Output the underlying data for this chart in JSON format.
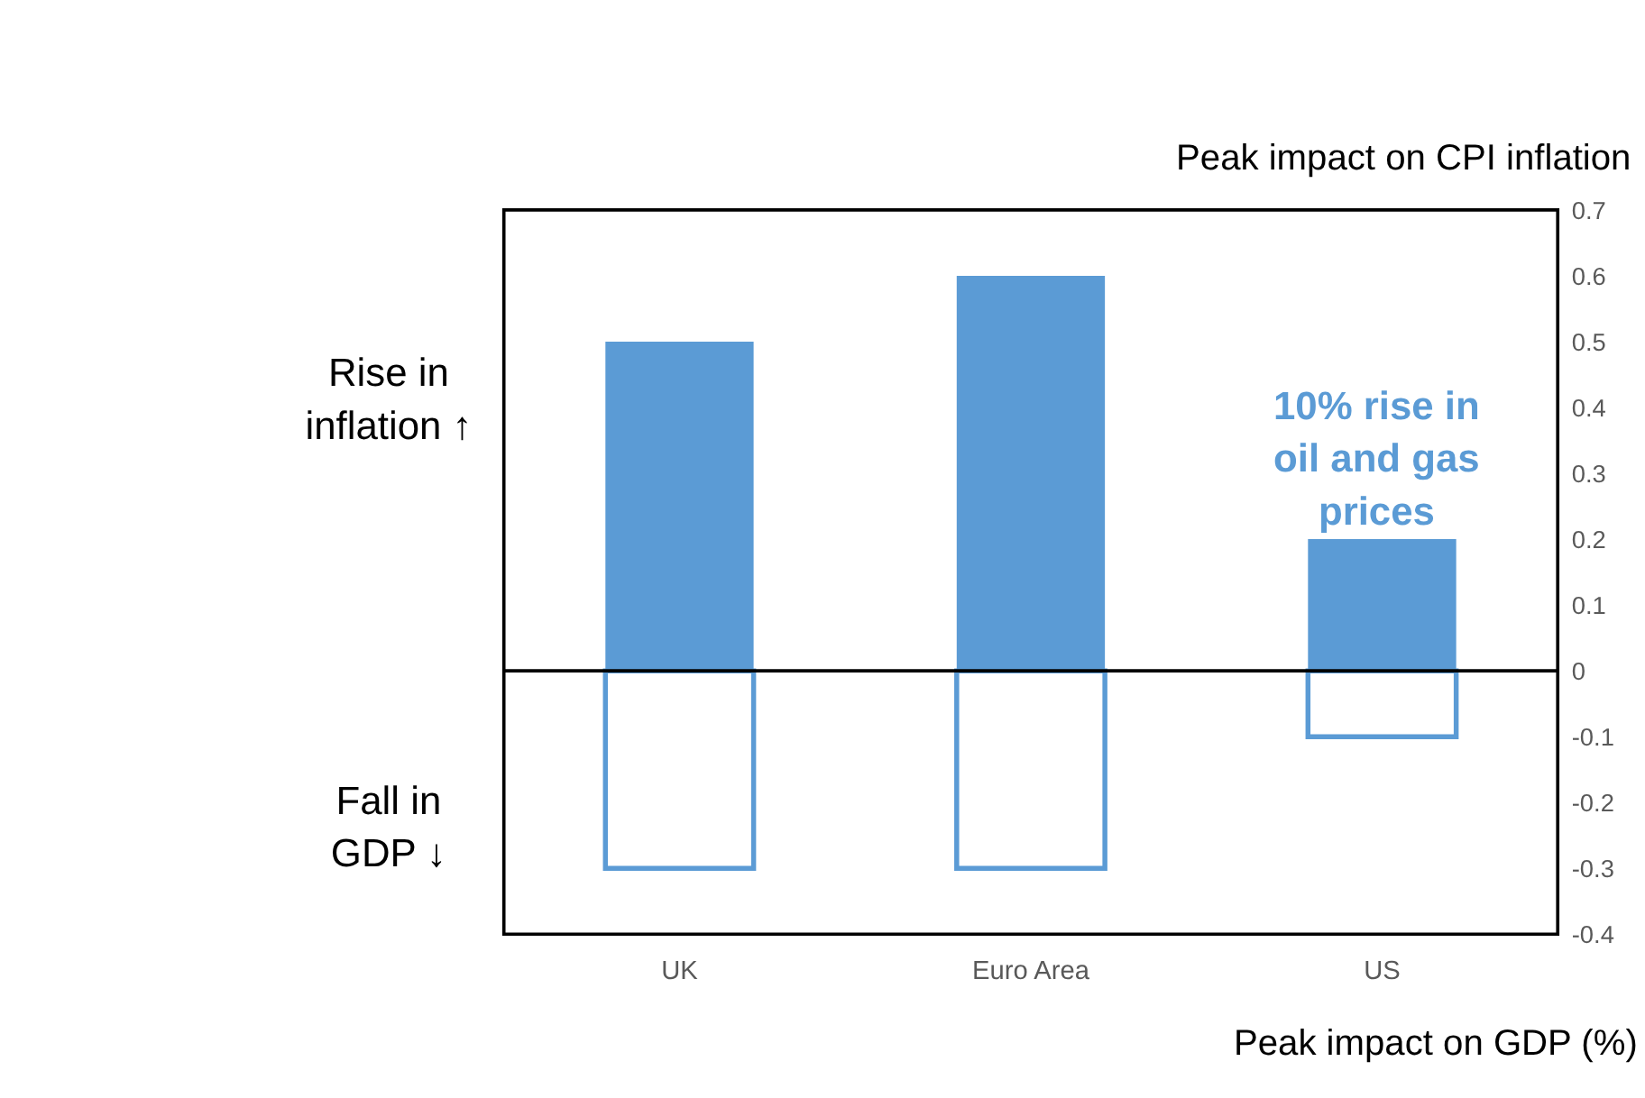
{
  "chart_data": {
    "type": "bar",
    "ylabel": "Peak impact on CPI inflation",
    "xlabel": "Peak impact on GDP (%)",
    "categories": [
      "UK",
      "Euro Area",
      "US"
    ],
    "series": [
      {
        "color": "#5b9bd5",
        "values": [
          0.5,
          0.6,
          0.2
        ]
      },
      {
        "color": "#5b9bd5",
        "values": [
          -0.3,
          -0.3,
          -0.1
        ]
      }
    ],
    "ylim": [
      -0.4,
      0.7
    ],
    "yticks": [
      0.7,
      0.6,
      0.5,
      0.4,
      0.3,
      0.2,
      0.1,
      0,
      -0.1,
      -0.2,
      -0.3,
      -0.4
    ],
    "ref_lines": [
      {
        "axis": "y",
        "value": 0,
        "color": "#000000"
      }
    ],
    "annotations": [
      "Rise in\ninflation ↑",
      "Fall in\nGDP ↓",
      "10% rise in\noil and gas\nprices"
    ],
    "grid": false,
    "stacked": true
  }
}
